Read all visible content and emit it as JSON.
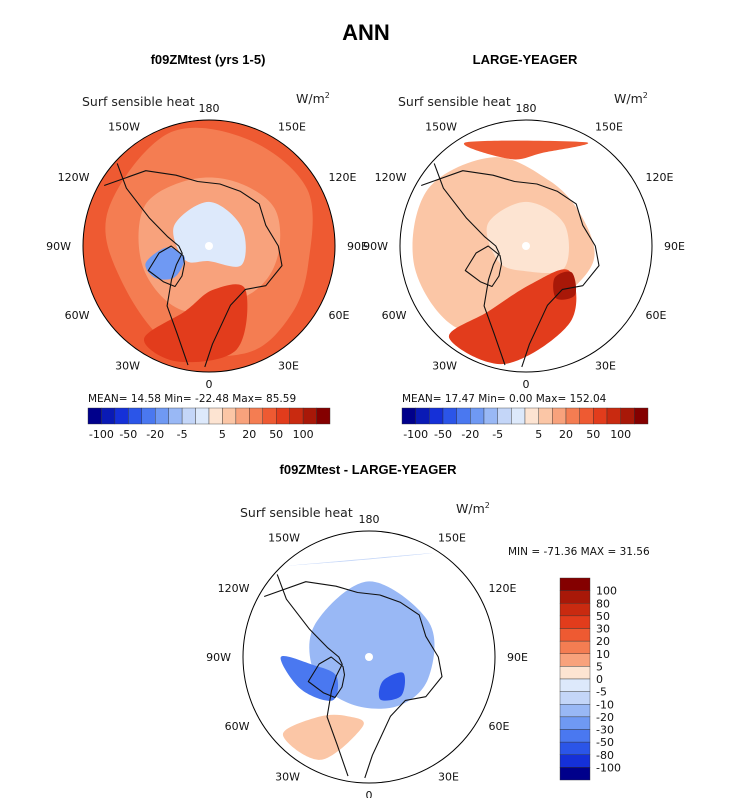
{
  "chart_data": {
    "type": "heatmap",
    "projection": "north-polar-stereographic",
    "title": "ANN",
    "palette": [
      "#00008b",
      "#0a1ab5",
      "#1530d8",
      "#2b55e8",
      "#4a78f0",
      "#6f99f3",
      "#99b8f5",
      "#c4d6f8",
      "#dde9fb",
      "#fde4d2",
      "#fbc6a6",
      "#f8a27c",
      "#f47d52",
      "#ee5a32",
      "#e23c1c",
      "#c92a10",
      "#a81808",
      "#840000"
    ],
    "panels": [
      {
        "id": "model",
        "title": "f09ZMtest (yrs 1-5)",
        "variable": "Surf sensible heat",
        "units_base": "W/m",
        "units_exp": "2",
        "stats_text": "MEAN=  14.58  Min= -22.48  Max=  85.59",
        "colorbar_labels": [
          "-100",
          "-50",
          "-20",
          "-5",
          "5",
          "20",
          "50",
          "100"
        ],
        "longitude_labels": [
          "180",
          "150E",
          "120E",
          "90E",
          "60E",
          "30E",
          "0",
          "30W",
          "60W",
          "90W",
          "120W",
          "150W"
        ]
      },
      {
        "id": "obs",
        "title": "LARGE-YEAGER",
        "variable": "Surf sensible heat",
        "units_base": "W/m",
        "units_exp": "2",
        "stats_text": "MEAN=  17.47  Min=   0.00  Max= 152.04",
        "colorbar_labels": [
          "-100",
          "-50",
          "-20",
          "-5",
          "5",
          "20",
          "50",
          "100"
        ],
        "longitude_labels": [
          "180",
          "150E",
          "120E",
          "90E",
          "60E",
          "30E",
          "0",
          "30W",
          "60W",
          "90W",
          "120W",
          "150W"
        ]
      },
      {
        "id": "diff",
        "title": "f09ZMtest - LARGE-YEAGER",
        "variable": "Surf sensible heat",
        "units_base": "W/m",
        "units_exp": "2",
        "stats_text": "MIN = -71.36 MAX =  31.56",
        "colorbar_labels": [
          "100",
          "80",
          "50",
          "30",
          "20",
          "10",
          "5",
          "0",
          "-5",
          "-10",
          "-20",
          "-30",
          "-50",
          "-80",
          "-100"
        ],
        "longitude_labels": [
          "180",
          "150E",
          "120E",
          "90E",
          "60E",
          "30E",
          "0",
          "30W",
          "60W",
          "90W",
          "120W",
          "150W"
        ]
      }
    ]
  }
}
